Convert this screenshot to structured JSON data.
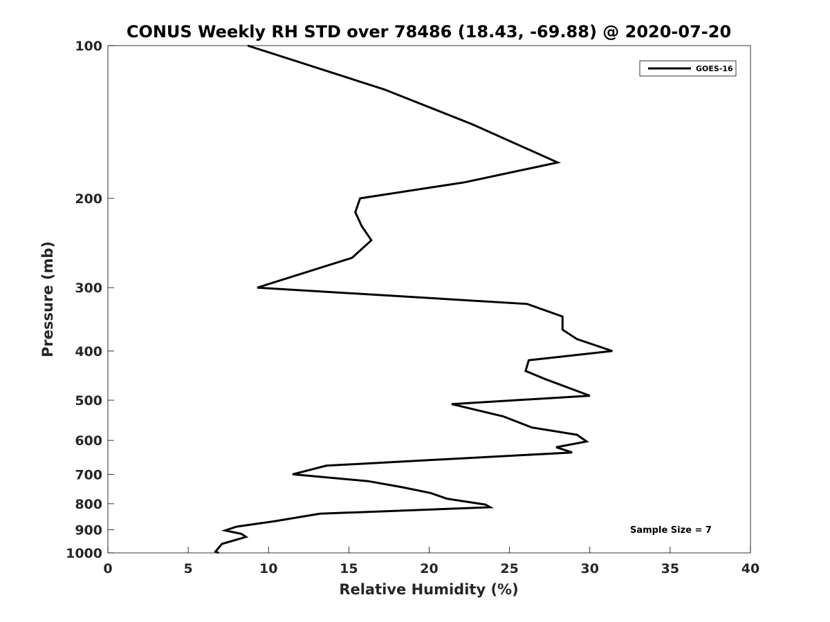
{
  "chart_data": {
    "type": "line",
    "title": "CONUS Weekly RH STD over 78486 (18.43, -69.88) @ 2020-07-20",
    "xlabel": "Relative Humidity (%)",
    "ylabel": "Pressure (mb)",
    "xlim": [
      0,
      40
    ],
    "ylim": [
      1000,
      100
    ],
    "y_scale": "log",
    "y_reversed": true,
    "grid": false,
    "legend_position": "top-right",
    "x_ticks": [
      "0",
      "5",
      "10",
      "15",
      "20",
      "25",
      "30",
      "35",
      "40"
    ],
    "y_ticks": [
      "100",
      "200",
      "300",
      "400",
      "500",
      "600",
      "700",
      "800",
      "900",
      "1000"
    ],
    "series": [
      {
        "name": "GOES-16",
        "color": "#000000",
        "x": [
          8.7,
          17.2,
          22.7,
          28.0,
          22.2,
          15.7,
          15.4,
          15.8,
          16.4,
          15.2,
          9.3,
          26.1,
          28.3,
          28.3,
          29.2,
          31.4,
          26.2,
          26.0,
          27.2,
          30.0,
          21.4,
          24.6,
          26.4,
          29.2,
          29.8,
          27.9,
          28.9,
          18.6,
          13.6,
          11.5,
          16.2,
          18.3,
          20.1,
          21.1,
          23.5,
          23.8,
          13.2,
          10.4,
          8.0,
          7.3,
          8.3,
          8.6,
          7.1,
          6.7,
          6.9
        ],
        "y": [
          100,
          122,
          143,
          170,
          186,
          200,
          213,
          227,
          242,
          262,
          300,
          323,
          342,
          363,
          379,
          400,
          417,
          438,
          454,
          490,
          509,
          538,
          566,
          585,
          603,
          619,
          634,
          660,
          673,
          700,
          722,
          742,
          762,
          782,
          803,
          813,
          837,
          866,
          888,
          903,
          917,
          930,
          960,
          994,
          1000
        ]
      }
    ],
    "annotations": [
      {
        "text": "Sample Size = 7"
      }
    ]
  }
}
